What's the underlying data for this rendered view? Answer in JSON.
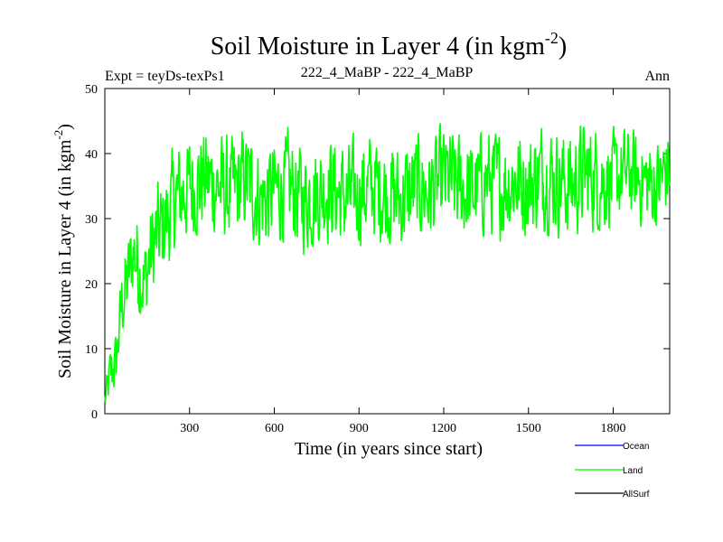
{
  "chart_data": {
    "type": "line",
    "title": "Soil Moisture in Layer 4 (in kgm",
    "title_sup": "-2",
    "title_close": ")",
    "subtitle_left": "Expt = teyDs-texPs1",
    "subtitle_center": "222_4_MaBP - 222_4_MaBP",
    "subtitle_right": "Ann",
    "xlabel": "Time (in years since start)",
    "ylabel": "Soil Moisture in Layer 4 (in kgm",
    "ylabel_sup": "-2",
    "ylabel_close": ")",
    "xlim": [
      0,
      2000
    ],
    "ylim": [
      0,
      50
    ],
    "xticks": [
      300,
      600,
      900,
      1200,
      1500,
      1800
    ],
    "yticks": [
      0,
      10,
      20,
      30,
      40,
      50
    ],
    "grid": false,
    "legend_position": "bottom-right",
    "series": [
      {
        "name": "Ocean",
        "color": "#0000ff",
        "values": []
      },
      {
        "name": "Land",
        "color": "#00ff00",
        "x": [
          0,
          20,
          40,
          60,
          80,
          100,
          120,
          140,
          160,
          180,
          200,
          250,
          300,
          350,
          400,
          450,
          500,
          550,
          600,
          650,
          700,
          750,
          800,
          850,
          900,
          950,
          1000,
          1050,
          1100,
          1150,
          1200,
          1250,
          1300,
          1350,
          1400,
          1450,
          1500,
          1550,
          1600,
          1650,
          1700,
          1750,
          1800,
          1850,
          1900,
          1950,
          2000
        ],
        "values": [
          2,
          6,
          8,
          17,
          20,
          25,
          23,
          20,
          24,
          27,
          28,
          33,
          35,
          36,
          35,
          34,
          36,
          33,
          34,
          35,
          33,
          34,
          35,
          33,
          34,
          35,
          34,
          33,
          35,
          34,
          36,
          35,
          34,
          36,
          35,
          36,
          35,
          37,
          36,
          35,
          37,
          36,
          36,
          37,
          36,
          35,
          38
        ],
        "noise": [
          2,
          4,
          4,
          5,
          6,
          6,
          7,
          6,
          7,
          7,
          7,
          7,
          7,
          7,
          7,
          7,
          7,
          7,
          7,
          7,
          7,
          7,
          7,
          7,
          7,
          7,
          7,
          7,
          7,
          7,
          7,
          7,
          7,
          7,
          7,
          7,
          7,
          7,
          7,
          7,
          7,
          7,
          6,
          6,
          6,
          6,
          6
        ]
      },
      {
        "name": "AllSurf",
        "color": "#000000",
        "values": []
      }
    ]
  }
}
